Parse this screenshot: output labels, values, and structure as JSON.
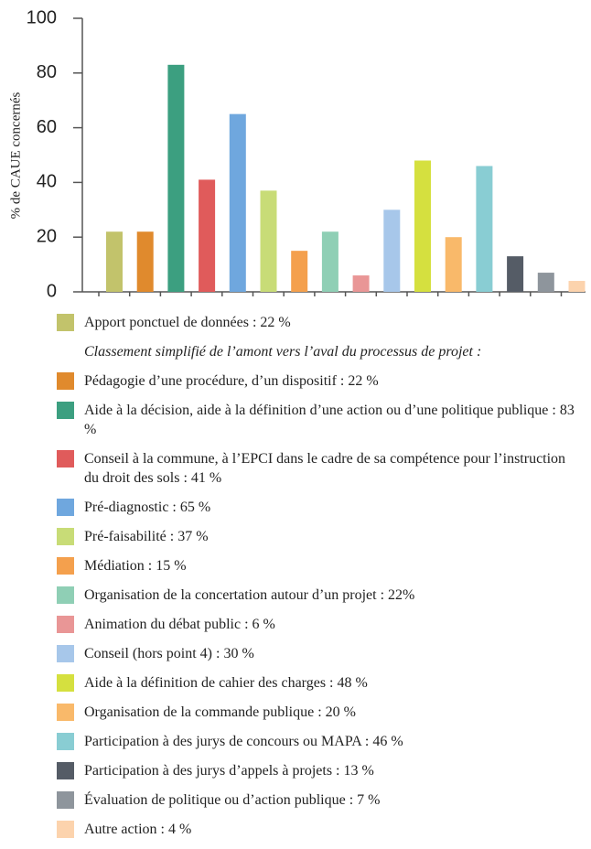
{
  "chart_data": {
    "type": "bar",
    "ylabel": "% de CAUE concernés",
    "categories": [
      "Apport ponctuel de données : 22 %",
      "Pédagogie d’une procédure, d’un dispositif : 22 %",
      "Aide à la décision, aide à la définition d’une action ou d’une politique publique : 83 %",
      "Conseil à la commune, à l’EPCI dans le cadre de sa compétence pour l’instruction du droit des sols : 41 %",
      "Pré-diagnostic : 65 %",
      "Pré-faisabilité : 37 %",
      "Médiation : 15 %",
      "Organisation de la concertation autour d’un projet : 22%",
      "Animation du débat public : 6 %",
      "Conseil (hors point 4) : 30 %",
      "Aide à la définition de cahier des charges : 48 %",
      "Organisation de la commande publique : 20 %",
      "Participation à des jurys de concours ou MAPA : 46 %",
      "Participation à des jurys d’appels à projets : 13 %",
      "Évaluation de politique ou d’action publique : 7 %",
      "Autre action : 4 %"
    ],
    "values": [
      22,
      22,
      83,
      41,
      65,
      37,
      15,
      22,
      6,
      30,
      48,
      20,
      46,
      13,
      7,
      4
    ],
    "colors": [
      "#c2c36b",
      "#e08a2d",
      "#3c9f80",
      "#e05b5b",
      "#6fa7de",
      "#c8dc77",
      "#f4a04d",
      "#8fcfb5",
      "#e99696",
      "#a7c7ea",
      "#d5e03f",
      "#f9b96a",
      "#89cdd3",
      "#555c66",
      "#8e959c",
      "#fcd3ad"
    ],
    "legend_note": "Classement simplifié de l’amont vers l’aval du processus de projet :",
    "ylim": [
      0,
      100
    ],
    "yticks": [
      0,
      20,
      40,
      60,
      80,
      100
    ]
  }
}
